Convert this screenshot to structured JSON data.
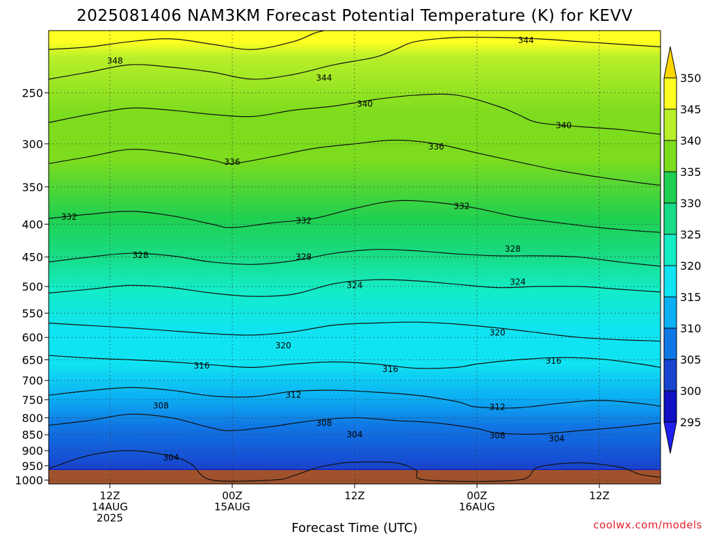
{
  "chart_data": {
    "type": "heatmap",
    "title": "2025081406 NAM3KM Forecast Potential Temperature (K) for KEVV",
    "xlabel": "Forecast Time (UTC)",
    "ylabel": "",
    "x_ticks": [
      {
        "hour": 6,
        "lines": [
          "12Z",
          "14AUG",
          "2025"
        ]
      },
      {
        "hour": 18,
        "lines": [
          "00Z",
          "15AUG"
        ]
      },
      {
        "hour": 30,
        "lines": [
          "12Z"
        ]
      },
      {
        "hour": 42,
        "lines": [
          "00Z",
          "16AUG"
        ]
      },
      {
        "hour": 54,
        "lines": [
          "12Z"
        ]
      }
    ],
    "xlim_hours": [
      0,
      60
    ],
    "y_ticks": [
      250,
      300,
      350,
      400,
      450,
      500,
      550,
      600,
      650,
      700,
      750,
      800,
      850,
      900,
      950,
      1000
    ],
    "ylim_hpa": [
      200,
      1014
    ],
    "y_scale": "log",
    "grid": true,
    "colorbar": {
      "labels": [
        350,
        345,
        340,
        335,
        330,
        325,
        320,
        315,
        310,
        305,
        300,
        295
      ],
      "colors": [
        "#ffd700",
        "#ffff22",
        "#b8ef2a",
        "#7ddc1e",
        "#20d050",
        "#18dc88",
        "#14ecc4",
        "#10e4f2",
        "#0cb0f4",
        "#1078e4",
        "#1844d0",
        "#1010c4",
        "#2020f0"
      ],
      "placement": "right"
    },
    "series": [
      {
        "level": 304,
        "values": [
          [
            0,
            960
          ],
          [
            4,
            915
          ],
          [
            8,
            900
          ],
          [
            12,
            918
          ],
          [
            14,
            945
          ],
          [
            16,
            1000
          ],
          [
            22,
            1000
          ],
          [
            24,
            985
          ],
          [
            26,
            960
          ],
          [
            28,
            945
          ],
          [
            30,
            938
          ],
          [
            34,
            940
          ],
          [
            36,
            965
          ],
          [
            37,
            1000
          ],
          [
            46,
            1000
          ],
          [
            48,
            955
          ],
          [
            52,
            940
          ],
          [
            56,
            955
          ],
          [
            58,
            980
          ],
          [
            60,
            990
          ]
        ]
      },
      {
        "level": 308,
        "values": [
          [
            0,
            822
          ],
          [
            4,
            808
          ],
          [
            8,
            790
          ],
          [
            12,
            800
          ],
          [
            16,
            830
          ],
          [
            18,
            838
          ],
          [
            22,
            825
          ],
          [
            26,
            808
          ],
          [
            30,
            800
          ],
          [
            34,
            808
          ],
          [
            38,
            815
          ],
          [
            42,
            832
          ],
          [
            44,
            845
          ],
          [
            48,
            848
          ],
          [
            52,
            838
          ],
          [
            56,
            828
          ],
          [
            60,
            815
          ]
        ]
      },
      {
        "level": 312,
        "values": [
          [
            0,
            738
          ],
          [
            4,
            726
          ],
          [
            8,
            718
          ],
          [
            12,
            725
          ],
          [
            16,
            740
          ],
          [
            20,
            742
          ],
          [
            24,
            728
          ],
          [
            28,
            725
          ],
          [
            32,
            730
          ],
          [
            36,
            738
          ],
          [
            40,
            755
          ],
          [
            42,
            770
          ],
          [
            46,
            772
          ],
          [
            50,
            760
          ],
          [
            54,
            752
          ],
          [
            58,
            760
          ],
          [
            60,
            768
          ]
        ]
      },
      {
        "level": 316,
        "values": [
          [
            0,
            640
          ],
          [
            4,
            646
          ],
          [
            8,
            650
          ],
          [
            12,
            655
          ],
          [
            16,
            662
          ],
          [
            20,
            668
          ],
          [
            24,
            660
          ],
          [
            28,
            655
          ],
          [
            32,
            660
          ],
          [
            36,
            670
          ],
          [
            40,
            668
          ],
          [
            42,
            660
          ],
          [
            46,
            650
          ],
          [
            50,
            645
          ],
          [
            54,
            648
          ],
          [
            58,
            660
          ],
          [
            60,
            668
          ]
        ]
      },
      {
        "level": 320,
        "values": [
          [
            0,
            570
          ],
          [
            4,
            575
          ],
          [
            8,
            580
          ],
          [
            12,
            586
          ],
          [
            16,
            592
          ],
          [
            20,
            595
          ],
          [
            24,
            588
          ],
          [
            28,
            574
          ],
          [
            32,
            570
          ],
          [
            36,
            568
          ],
          [
            40,
            572
          ],
          [
            44,
            580
          ],
          [
            48,
            590
          ],
          [
            52,
            600
          ],
          [
            56,
            605
          ],
          [
            60,
            608
          ]
        ]
      },
      {
        "level": 324,
        "values": [
          [
            0,
            512
          ],
          [
            4,
            505
          ],
          [
            8,
            498
          ],
          [
            12,
            502
          ],
          [
            16,
            512
          ],
          [
            20,
            518
          ],
          [
            24,
            514
          ],
          [
            28,
            495
          ],
          [
            32,
            488
          ],
          [
            36,
            490
          ],
          [
            40,
            496
          ],
          [
            44,
            502
          ],
          [
            48,
            500
          ],
          [
            52,
            500
          ],
          [
            56,
            505
          ],
          [
            60,
            510
          ]
        ]
      },
      {
        "level": 328,
        "values": [
          [
            0,
            458
          ],
          [
            4,
            450
          ],
          [
            8,
            444
          ],
          [
            12,
            448
          ],
          [
            16,
            458
          ],
          [
            20,
            462
          ],
          [
            24,
            456
          ],
          [
            28,
            444
          ],
          [
            32,
            438
          ],
          [
            36,
            440
          ],
          [
            40,
            445
          ],
          [
            44,
            448
          ],
          [
            48,
            448
          ],
          [
            52,
            450
          ],
          [
            56,
            458
          ],
          [
            60,
            465
          ]
        ]
      },
      {
        "level": 332,
        "values": [
          [
            0,
            392
          ],
          [
            4,
            386
          ],
          [
            8,
            382
          ],
          [
            12,
            388
          ],
          [
            16,
            400
          ],
          [
            18,
            405
          ],
          [
            22,
            398
          ],
          [
            26,
            392
          ],
          [
            30,
            378
          ],
          [
            34,
            368
          ],
          [
            38,
            370
          ],
          [
            42,
            378
          ],
          [
            46,
            390
          ],
          [
            50,
            398
          ],
          [
            54,
            405
          ],
          [
            58,
            410
          ],
          [
            60,
            412
          ]
        ]
      },
      {
        "level": 336,
        "values": [
          [
            0,
            322
          ],
          [
            4,
            314
          ],
          [
            8,
            306
          ],
          [
            12,
            310
          ],
          [
            16,
            318
          ],
          [
            18,
            322
          ],
          [
            22,
            314
          ],
          [
            26,
            305
          ],
          [
            30,
            300
          ],
          [
            34,
            296
          ],
          [
            38,
            300
          ],
          [
            42,
            310
          ],
          [
            46,
            320
          ],
          [
            50,
            330
          ],
          [
            54,
            338
          ],
          [
            58,
            345
          ],
          [
            60,
            348
          ]
        ]
      },
      {
        "level": 340,
        "values": [
          [
            0,
            278
          ],
          [
            4,
            270
          ],
          [
            8,
            264
          ],
          [
            12,
            266
          ],
          [
            16,
            270
          ],
          [
            20,
            272
          ],
          [
            24,
            266
          ],
          [
            28,
            262
          ],
          [
            32,
            256
          ],
          [
            36,
            252
          ],
          [
            40,
            252
          ],
          [
            44,
            262
          ],
          [
            46,
            270
          ],
          [
            48,
            278
          ],
          [
            52,
            282
          ],
          [
            56,
            285
          ],
          [
            60,
            290
          ]
        ]
      },
      {
        "level": 344,
        "values": [
          [
            0,
            238
          ],
          [
            4,
            232
          ],
          [
            8,
            226
          ],
          [
            12,
            228
          ],
          [
            16,
            232
          ],
          [
            20,
            238
          ],
          [
            24,
            234
          ],
          [
            28,
            226
          ],
          [
            32,
            220
          ],
          [
            34,
            214
          ],
          [
            36,
            208
          ],
          [
            40,
            205
          ],
          [
            44,
            205
          ],
          [
            48,
            206
          ],
          [
            52,
            208
          ],
          [
            56,
            210
          ],
          [
            60,
            212
          ]
        ]
      },
      {
        "level": 348,
        "values": [
          [
            0,
            214
          ],
          [
            4,
            212
          ],
          [
            8,
            208
          ],
          [
            12,
            206
          ],
          [
            16,
            210
          ],
          [
            20,
            214
          ],
          [
            24,
            208
          ],
          [
            26,
            202
          ],
          [
            27,
            200
          ]
        ]
      }
    ],
    "contour_labels": [
      {
        "level": "348",
        "x": 6.5,
        "p": 223
      },
      {
        "level": "344",
        "x": 27,
        "p": 237
      },
      {
        "level": "344",
        "x": 46.8,
        "p": 207
      },
      {
        "level": "340",
        "x": 31,
        "p": 260
      },
      {
        "level": "340",
        "x": 50.5,
        "p": 281
      },
      {
        "level": "336",
        "x": 18,
        "p": 320
      },
      {
        "level": "336",
        "x": 38,
        "p": 303
      },
      {
        "level": "332",
        "x": 2,
        "p": 390
      },
      {
        "level": "332",
        "x": 25,
        "p": 395
      },
      {
        "level": "332",
        "x": 40.5,
        "p": 375
      },
      {
        "level": "328",
        "x": 9,
        "p": 447
      },
      {
        "level": "328",
        "x": 25,
        "p": 450
      },
      {
        "level": "328",
        "x": 45.5,
        "p": 437
      },
      {
        "level": "324",
        "x": 30,
        "p": 498
      },
      {
        "level": "324",
        "x": 46,
        "p": 492
      },
      {
        "level": "320",
        "x": 23,
        "p": 618
      },
      {
        "level": "320",
        "x": 44,
        "p": 590
      },
      {
        "level": "316",
        "x": 15,
        "p": 664
      },
      {
        "level": "316",
        "x": 33.5,
        "p": 672
      },
      {
        "level": "316",
        "x": 49.5,
        "p": 653
      },
      {
        "level": "312",
        "x": 24,
        "p": 737
      },
      {
        "level": "312",
        "x": 44,
        "p": 770
      },
      {
        "level": "308",
        "x": 11,
        "p": 766
      },
      {
        "level": "308",
        "x": 27,
        "p": 815
      },
      {
        "level": "308",
        "x": 44,
        "p": 853
      },
      {
        "level": "304",
        "x": 12,
        "p": 923
      },
      {
        "level": "304",
        "x": 30,
        "p": 850
      },
      {
        "level": "304",
        "x": 49.8,
        "p": 862
      }
    ]
  },
  "credit": "coolwx.com/models"
}
